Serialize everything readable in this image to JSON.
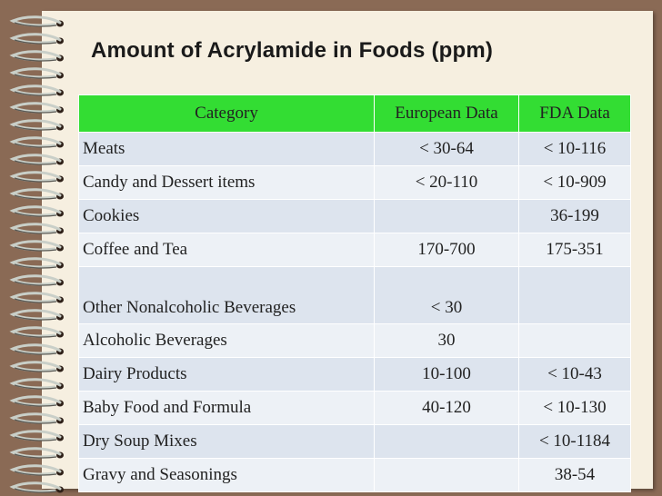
{
  "title": "Amount of Acrylamide in Foods (ppm)",
  "table": {
    "headers": [
      "Category",
      "European Data",
      "FDA Data"
    ],
    "rows": [
      [
        "Meats",
        "< 30-64",
        "< 10-116"
      ],
      [
        "Candy and Dessert items",
        "< 20-110",
        "< 10-909"
      ],
      [
        "Cookies",
        "",
        "36-199"
      ],
      [
        "Coffee and Tea",
        "170-700",
        "175-351"
      ],
      [
        "Other Nonalcoholic Beverages",
        "< 30",
        ""
      ],
      [
        "Alcoholic Beverages",
        "30",
        ""
      ],
      [
        "Dairy Products",
        "10-100",
        "< 10-43"
      ],
      [
        "Baby Food and Formula",
        "40-120",
        "< 10-130"
      ],
      [
        "Dry Soup Mixes",
        "",
        "< 10-1184"
      ],
      [
        "Gravy and Seasonings",
        "",
        "38-54"
      ]
    ]
  },
  "colors": {
    "header": "#33dd33",
    "row_dark": "#dde4ee",
    "row_light": "#edf1f6",
    "background": "#8a6a55",
    "paper": "#f6efe0"
  }
}
